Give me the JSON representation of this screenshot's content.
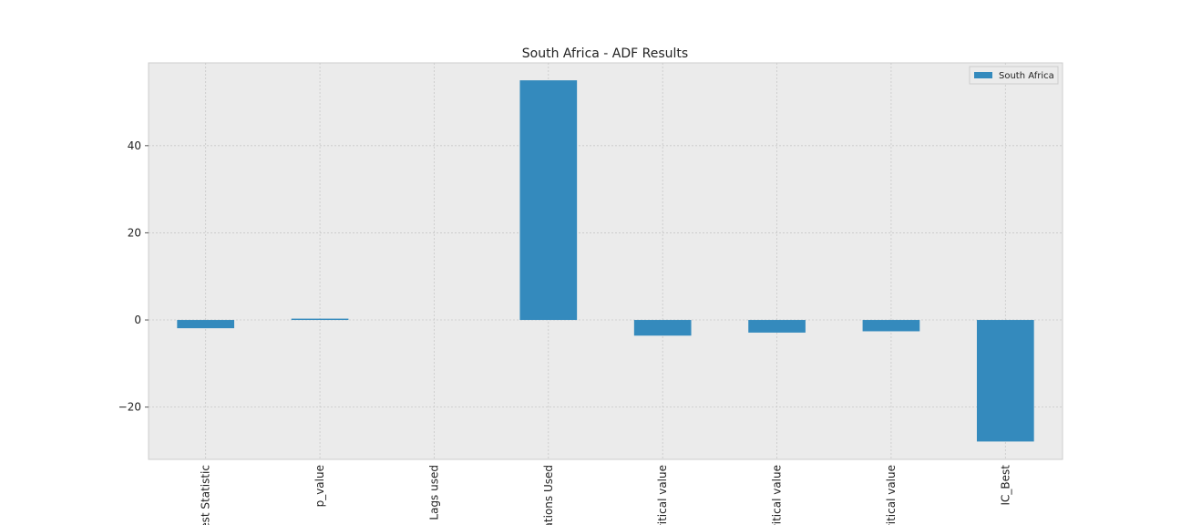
{
  "chart_data": {
    "type": "bar",
    "title": "South Africa - ADF Results",
    "categories": [
      "est Statistic",
      "p_value",
      "Lags used",
      "ations Used",
      "ritical value",
      "ritical value",
      "ritical value",
      "IC_Best"
    ],
    "series": [
      {
        "name": "South Africa",
        "color": "#348abd",
        "values": [
          -1.9,
          0.3,
          0,
          55,
          -3.6,
          -2.9,
          -2.6,
          -27.9
        ]
      }
    ],
    "ylim": [
      -32,
      59
    ],
    "yticks": [
      {
        "value": -20,
        "label": "−20"
      },
      0,
      20,
      40
    ],
    "grid": true,
    "legend": "upper right"
  }
}
